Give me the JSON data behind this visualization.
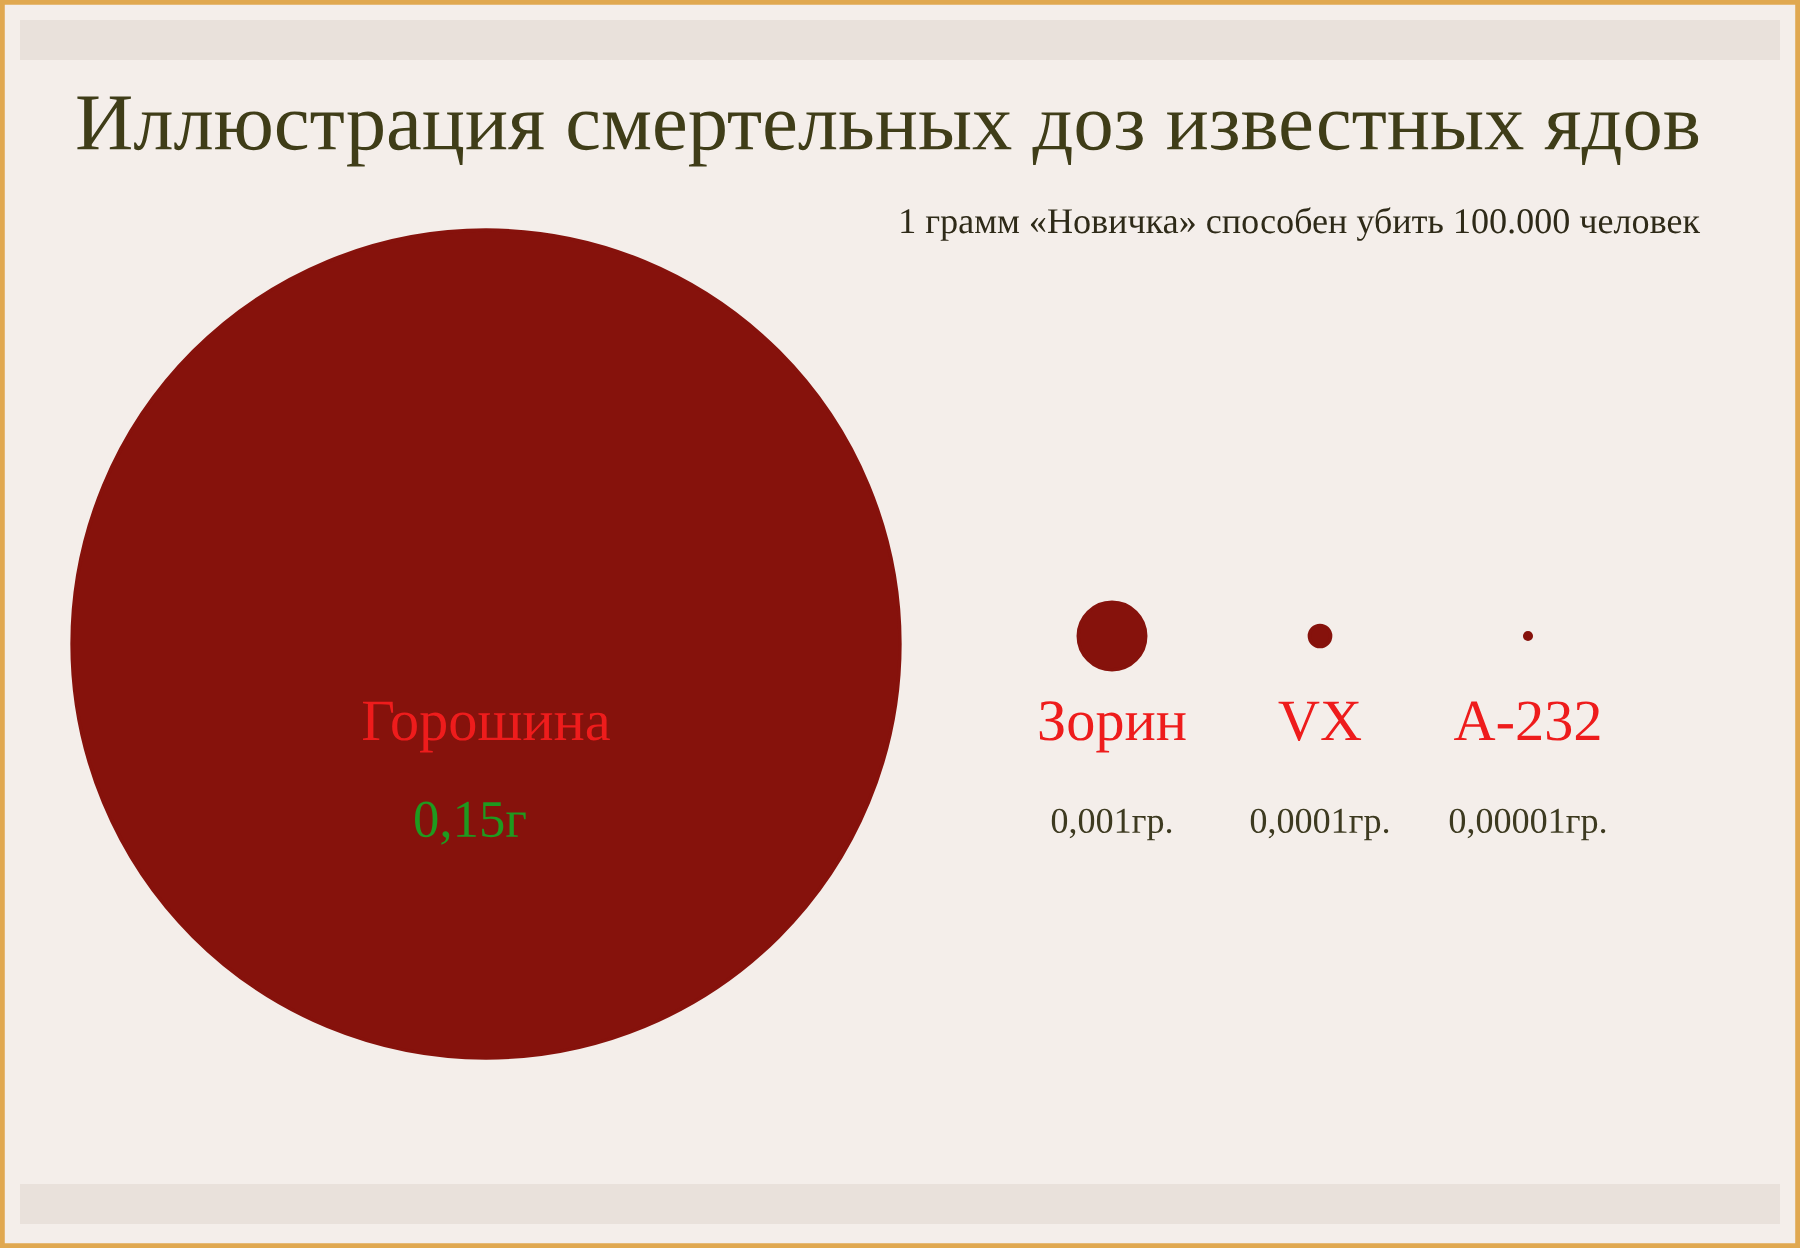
{
  "chart_data": {
    "type": "other",
    "title": "Иллюстрация смертельных доз известных ядов",
    "subtitle": "1 грамм «Новичка» способен убить 100.000 человек",
    "categories": [
      "Горошина",
      "Зорин",
      "VX",
      "A-232"
    ],
    "values": [
      0.15,
      0.001,
      0.0001,
      1e-05
    ],
    "value_labels": [
      "0,15г",
      "0,001гр.",
      "0,0001гр.",
      "0,00001гр."
    ],
    "colors": [
      "#86120c",
      "#86120c",
      "#86120c",
      "#86120c"
    ]
  }
}
